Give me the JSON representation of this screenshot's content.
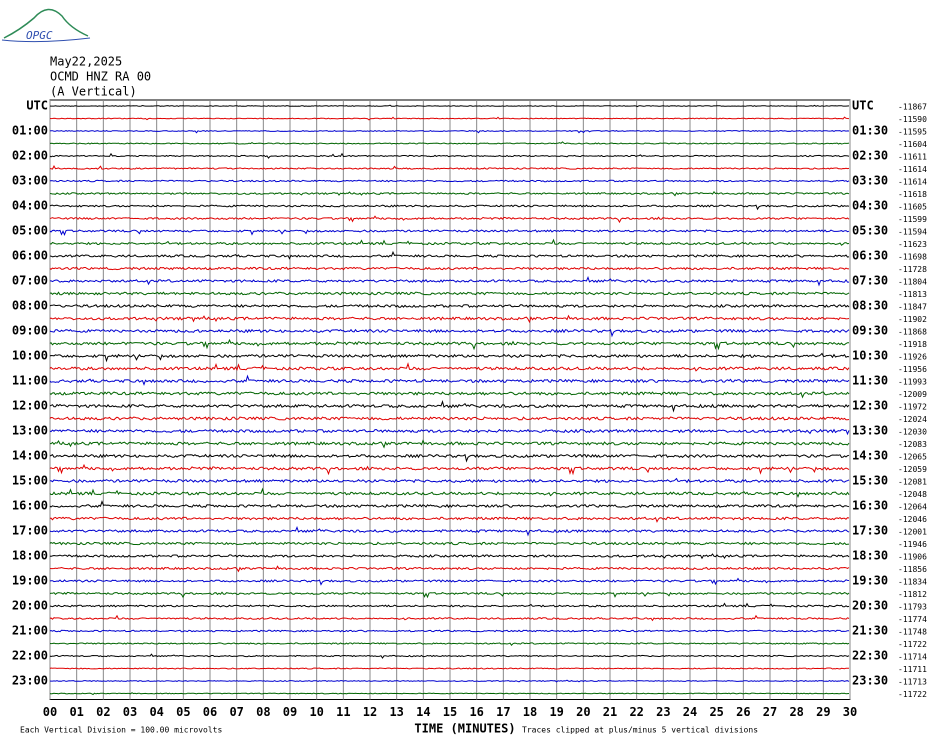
{
  "header": {
    "logo": "OPGC",
    "date": "May22,2025",
    "station": "OCMD HNZ RA 00",
    "component": "(A Vertical)"
  },
  "left_labels": [
    "UTC",
    "01:00",
    "02:00",
    "03:00",
    "04:00",
    "05:00",
    "06:00",
    "07:00",
    "08:00",
    "09:00",
    "10:00",
    "11:00",
    "12:00",
    "13:00",
    "14:00",
    "15:00",
    "16:00",
    "17:00",
    "18:00",
    "19:00",
    "20:00",
    "21:00",
    "22:00",
    "23:00"
  ],
  "right_labels": [
    "UTC",
    "01:30",
    "02:30",
    "03:30",
    "04:30",
    "05:30",
    "06:30",
    "07:30",
    "08:30",
    "09:30",
    "10:30",
    "11:30",
    "12:30",
    "13:30",
    "14:30",
    "15:30",
    "16:30",
    "17:30",
    "18:30",
    "19:30",
    "20:30",
    "21:30",
    "22:30",
    "23:30"
  ],
  "row_values": [
    "-11867",
    "-11590",
    "-11595",
    "-11604",
    "-11611",
    "-11614",
    "-11614",
    "-11618",
    "-11605",
    "-11599",
    "-11594",
    "-11623",
    "-11698",
    "-11728",
    "-11804",
    "-11813",
    "-11847",
    "-11902",
    "-11868",
    "-11918",
    "-11926",
    "-11956",
    "-11993",
    "-12009",
    "-11972",
    "-12024",
    "-12030",
    "-12083",
    "-12065",
    "-12059",
    "-12081",
    "-12048",
    "-12064",
    "-12046",
    "-12001",
    "-11946",
    "-11906",
    "-11856",
    "-11834",
    "-11812",
    "-11793",
    "-11774",
    "-11748",
    "-11722",
    "-11714",
    "-11711",
    "-11713",
    "-11722"
  ],
  "x_ticks": [
    "00",
    "01",
    "02",
    "03",
    "04",
    "05",
    "06",
    "07",
    "08",
    "09",
    "10",
    "11",
    "12",
    "13",
    "14",
    "15",
    "16",
    "17",
    "18",
    "19",
    "20",
    "21",
    "22",
    "23",
    "24",
    "25",
    "26",
    "27",
    "28",
    "29",
    "30"
  ],
  "trace_colors": [
    "#000000",
    "#e00000",
    "#0000d0",
    "#006400"
  ],
  "footer": {
    "scale": "Each Vertical Division =  100.00 microvolts",
    "x_title": "TIME (MINUTES)",
    "clip": "Traces clipped at plus/minus 5 vertical divisions"
  }
}
